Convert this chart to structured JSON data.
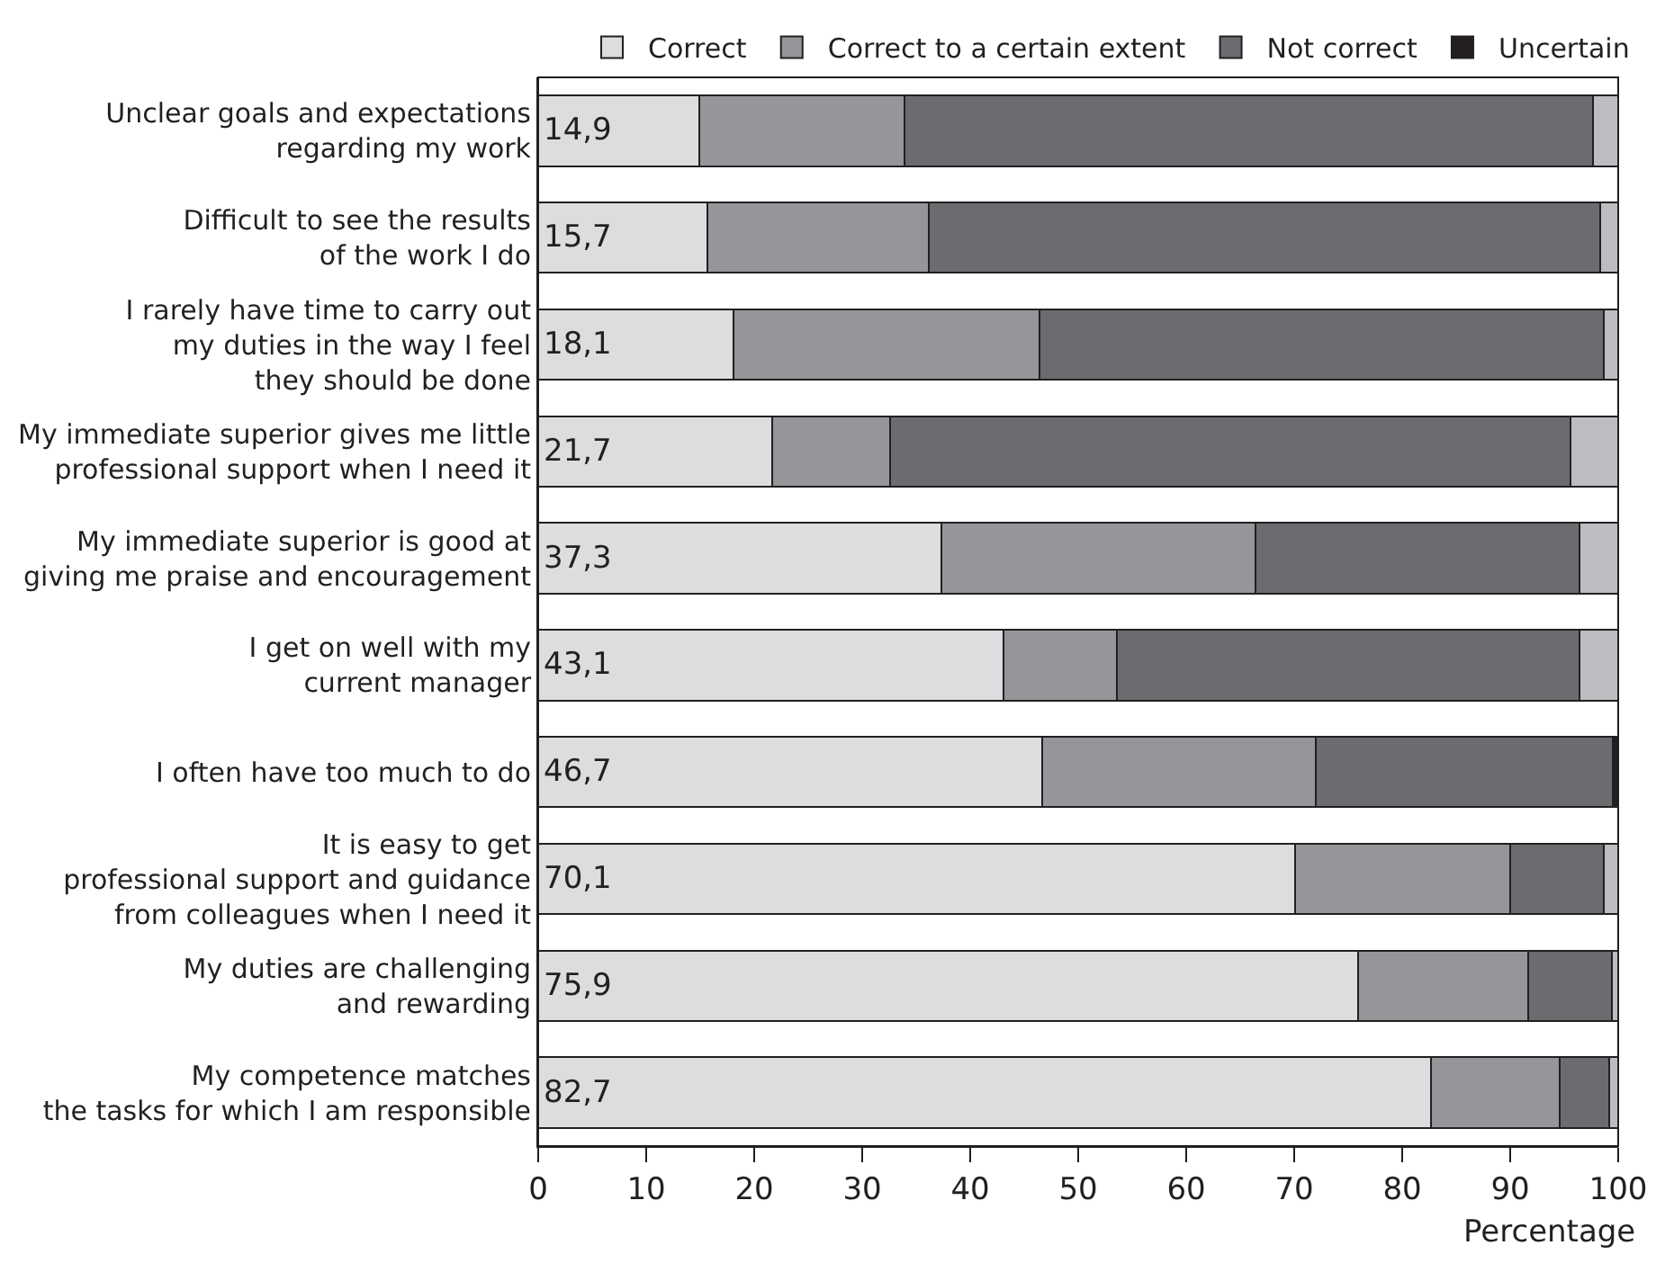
{
  "chart_data": {
    "type": "bar",
    "orientation": "horizontal",
    "stacked": true,
    "categories": [
      "Unclear goals and expectations\nregarding my work",
      "Difficult to see the results\nof the work I do",
      "I rarely have time to carry out\nmy duties in the way I feel\nthey should be done",
      "My immediate superior gives me little\nprofessional support when I need it",
      "My immediate superior is good at\ngiving me praise and encouragement",
      "I get on well with my\ncurrent manager",
      "I often have too much to do",
      "It is easy to get\nprofessional support and guidance\nfrom colleagues when I need it",
      "My duties are challenging\nand rewarding",
      "My competence matches\nthe tasks for which I am responsible"
    ],
    "series": [
      {
        "name": "Correct",
        "color": "#dcdddf",
        "values": [
          14.9,
          15.7,
          18.1,
          21.7,
          37.3,
          43.1,
          46.7,
          70.1,
          75.9,
          82.7
        ],
        "value_labels": [
          "14,9",
          "15,7",
          "18,1",
          "21,7",
          "37,3",
          "43,1",
          "46,7",
          "70,1",
          "75,9",
          "82,7"
        ]
      },
      {
        "name": "Correct to a certain extent",
        "color": "#959699",
        "values": [
          19.0,
          20.5,
          28.3,
          10.9,
          29.1,
          10.5,
          25.3,
          19.9,
          15.8,
          11.9
        ]
      },
      {
        "name": "Not correct",
        "color": "#6b6c70",
        "values": [
          63.8,
          62.1,
          52.3,
          63.0,
          30.0,
          42.8,
          27.5,
          8.7,
          7.7,
          4.6
        ]
      },
      {
        "name": "Uncertain",
        "color": "#231f20",
        "values": [
          null,
          null,
          null,
          null,
          null,
          null,
          0.5,
          null,
          null,
          null
        ]
      },
      {
        "color": "#bcbdc0",
        "values": [
          2.3,
          1.7,
          1.3,
          4.4,
          3.6,
          3.6,
          null,
          1.3,
          0.6,
          0.8
        ]
      }
    ],
    "xlim": [
      0,
      100
    ],
    "xticks": [
      0,
      10,
      20,
      30,
      40,
      50,
      60,
      70,
      80,
      90,
      100
    ],
    "xlabel": "Percentage",
    "legend": "top right",
    "grid": false
  }
}
